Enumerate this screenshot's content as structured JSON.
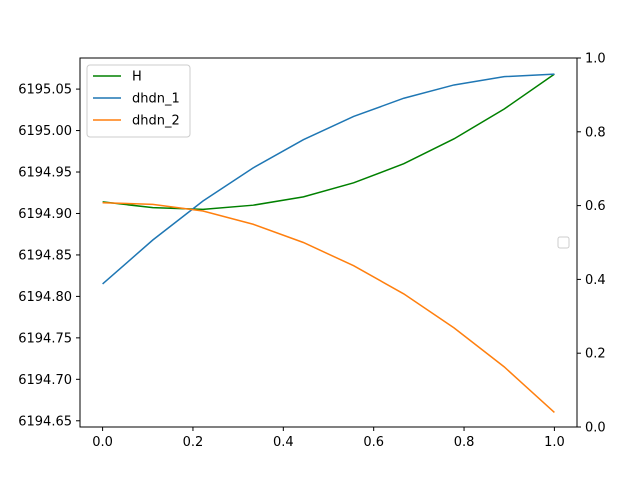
{
  "chart_data": {
    "type": "line",
    "x": [
      0.0,
      0.1111,
      0.2222,
      0.3333,
      0.4444,
      0.5556,
      0.6667,
      0.7778,
      0.8889,
      1.0
    ],
    "series": [
      {
        "name": "H",
        "color": "#008000",
        "axis": "left",
        "values": [
          6194.914,
          6194.907,
          6194.905,
          6194.91,
          6194.92,
          6194.937,
          6194.96,
          6194.99,
          6195.026,
          6195.068
        ]
      },
      {
        "name": "dhdn_1",
        "color": "#1f77b4",
        "axis": "left",
        "values": [
          6194.815,
          6194.868,
          6194.915,
          6194.955,
          6194.989,
          6195.017,
          6195.039,
          6195.055,
          6195.065,
          6195.068
        ]
      },
      {
        "name": "dhdn_2",
        "color": "#ff7f0e",
        "axis": "left",
        "values": [
          6194.913,
          6194.911,
          6194.903,
          6194.887,
          6194.865,
          6194.837,
          6194.803,
          6194.762,
          6194.715,
          6194.66
        ]
      }
    ],
    "xlim": [
      -0.05,
      1.05
    ],
    "ylim": [
      6194.6425,
      6195.0875
    ],
    "ylim_right": [
      0.0,
      1.0
    ],
    "xticks": [
      "0.0",
      "0.2",
      "0.4",
      "0.6",
      "0.8",
      "1.0"
    ],
    "xtick_values": [
      0.0,
      0.2,
      0.4,
      0.6,
      0.8,
      1.0
    ],
    "yticks": [
      "6194.65",
      "6194.70",
      "6194.75",
      "6194.80",
      "6194.85",
      "6194.90",
      "6194.95",
      "6195.00",
      "6195.05"
    ],
    "ytick_values": [
      6194.65,
      6194.7,
      6194.75,
      6194.8,
      6194.85,
      6194.9,
      6194.95,
      6195.0,
      6195.05
    ],
    "yticks_right": [
      "0.0",
      "0.2",
      "0.4",
      "0.6",
      "0.8",
      "1.0"
    ],
    "ytick_values_right": [
      0.0,
      0.2,
      0.4,
      0.6,
      0.8,
      1.0
    ],
    "legend": {
      "position": "top-left",
      "entries": [
        "H",
        "dhdn_1",
        "dhdn_2"
      ]
    },
    "empty_legend": {
      "position": "right"
    },
    "grid": false
  }
}
